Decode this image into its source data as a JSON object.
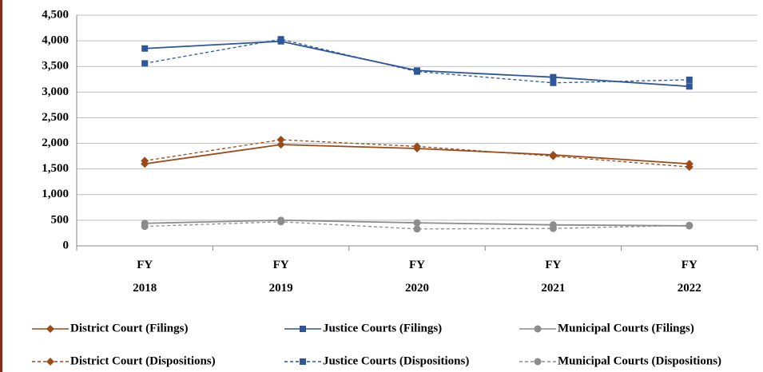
{
  "chart_data": {
    "type": "line",
    "categories": [
      "FY 2018",
      "FY 2019",
      "FY 2020",
      "FY 2021",
      "FY 2022"
    ],
    "series": [
      {
        "name": "District Court (Filings)",
        "color": "#9c4a1a",
        "marker": "diamond",
        "line_style": "solid",
        "values": [
          1600,
          1975,
          1900,
          1775,
          1600
        ]
      },
      {
        "name": "Justice Courts (Filings)",
        "color": "#2f559a",
        "marker": "square",
        "line_style": "solid",
        "values": [
          3850,
          3990,
          3420,
          3290,
          3110
        ]
      },
      {
        "name": "Municipal Courts (Filings)",
        "color": "#8c8c8c",
        "marker": "circle",
        "line_style": "solid",
        "values": [
          440,
          500,
          450,
          410,
          390
        ]
      },
      {
        "name": "District Court (Dispositions)",
        "color": "#9c4a1a",
        "marker": "diamond",
        "line_style": "dashed",
        "values": [
          1660,
          2070,
          1940,
          1750,
          1540
        ]
      },
      {
        "name": "Justice Courts (Dispositions)",
        "color": "#2f559a",
        "marker": "square",
        "line_style": "dashed",
        "values": [
          3560,
          4030,
          3400,
          3180,
          3240
        ]
      },
      {
        "name": "Municipal Courts (Dispositions)",
        "color": "#8c8c8c",
        "marker": "circle",
        "line_style": "dashed",
        "values": [
          380,
          470,
          330,
          340,
          400
        ]
      }
    ],
    "ylim": [
      0,
      4500
    ],
    "yticks": [
      0,
      500,
      {
        "value": 1000,
        "label": "1,000"
      },
      {
        "value": 1500,
        "label": "1,500"
      },
      {
        "value": 2000,
        "label": "2,000"
      },
      {
        "value": 2500,
        "label": "2,500"
      },
      {
        "value": 3000,
        "label": "3,000"
      },
      {
        "value": 3500,
        "label": "3,500"
      },
      {
        "value": 4000,
        "label": "4,000"
      },
      {
        "value": 4500,
        "label": "4,500"
      }
    ],
    "grid": true
  }
}
